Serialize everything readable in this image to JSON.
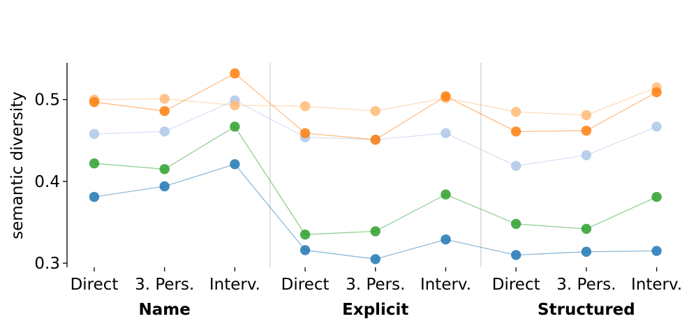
{
  "chart_data": {
    "type": "line",
    "ylabel": "semantic diversity",
    "ylim": [
      0.295,
      0.545
    ],
    "yticks": [
      0.3,
      0.4,
      0.5
    ],
    "ytick_labels": [
      "0.3",
      "0.4",
      "0.5"
    ],
    "categories": [
      "Direct",
      "3. Pers.",
      "Interv.",
      "Direct",
      "3. Pers.",
      "Interv.",
      "Direct",
      "3. Pers.",
      "Interv."
    ],
    "groups": [
      {
        "label": "Name",
        "start": 0,
        "end": 2
      },
      {
        "label": "Explicit",
        "start": 3,
        "end": 5
      },
      {
        "label": "Structured",
        "start": 6,
        "end": 8
      }
    ],
    "grid": false,
    "series": [
      {
        "color": "#aec7e8",
        "values": [
          0.458,
          0.461,
          0.499,
          0.454,
          0.451,
          0.459,
          0.419,
          0.432,
          0.467
        ]
      },
      {
        "color": "#1f77b4",
        "values": [
          0.381,
          0.394,
          0.421,
          0.316,
          0.305,
          0.329,
          0.31,
          0.314,
          0.315
        ]
      },
      {
        "color": "#2ca02c",
        "values": [
          0.422,
          0.415,
          0.467,
          0.335,
          0.339,
          0.384,
          0.348,
          0.342,
          0.381
        ]
      },
      {
        "color": "#ffbb78",
        "values": [
          0.5,
          0.501,
          0.493,
          0.492,
          0.486,
          0.502,
          0.485,
          0.481,
          0.515
        ]
      },
      {
        "color": "#ff7f0e",
        "values": [
          0.497,
          0.486,
          0.532,
          0.459,
          0.451,
          0.504,
          0.461,
          0.462,
          0.509
        ]
      }
    ]
  }
}
